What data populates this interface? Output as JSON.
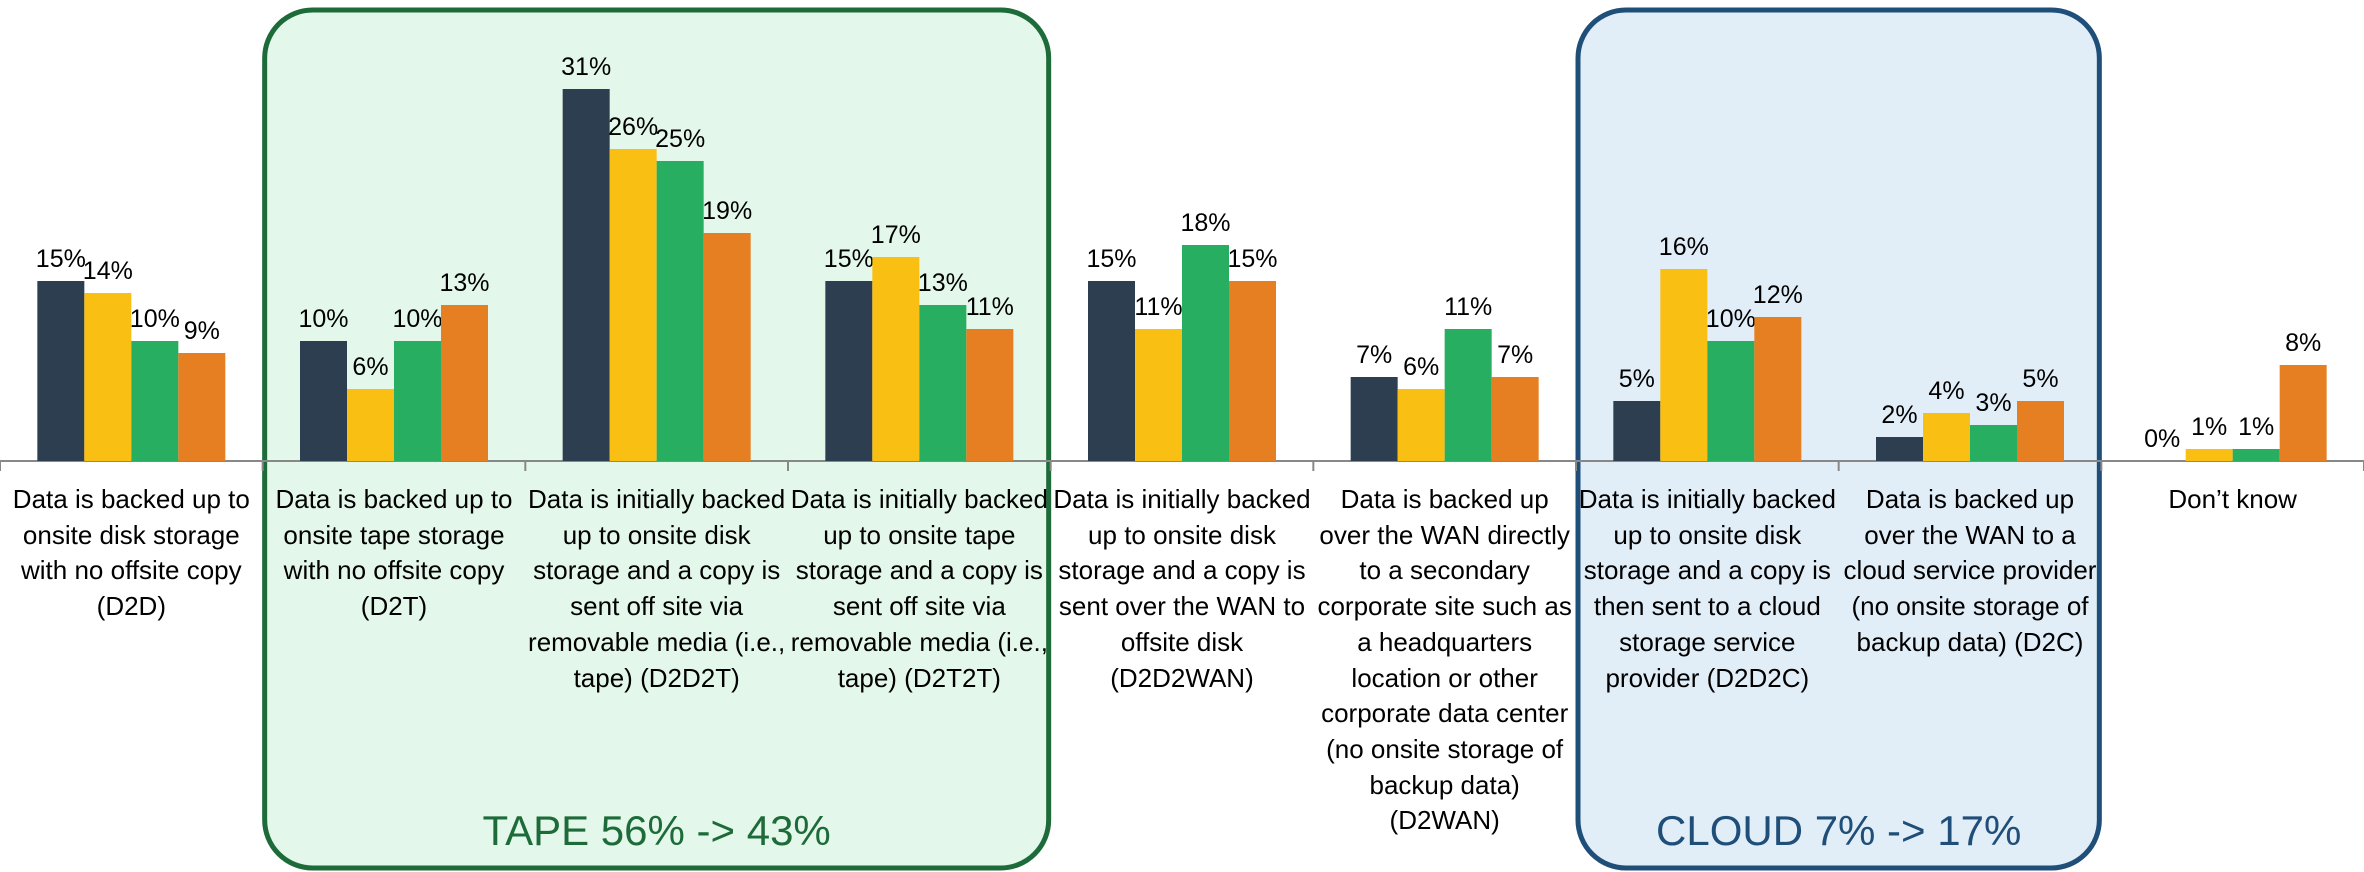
{
  "chart_data": {
    "type": "bar",
    "categories": [
      "Data is backed up to onsite disk storage with no offsite copy (D2D)",
      "Data is backed up to onsite tape storage with no offsite copy (D2T)",
      "Data is initially backed up to onsite disk storage and a copy is sent off site via removable media (i.e., tape) (D2D2T)",
      "Data is initially backed up to onsite tape storage and a copy is sent off site via removable media (i.e., tape) (D2T2T)",
      "Data is initially backed up to onsite disk storage and a copy is sent over the WAN to offsite disk (D2D2WAN)",
      "Data is backed up over the WAN directly to a secondary corporate site such as a headquarters location or other corporate data center (no onsite storage of backup data) (D2WAN)",
      "Data is initially backed up to onsite disk storage and a copy is then sent to a cloud storage service provider (D2D2C)",
      "Data is backed up over the WAN to a cloud service provider (no onsite storage of backup data) (D2C)",
      "Don’t know"
    ],
    "series": [
      {
        "color": "#2c3e50",
        "values": [
          15,
          10,
          31,
          15,
          15,
          7,
          5,
          2,
          0
        ],
        "value_labels": [
          "15%",
          "10%",
          "31%",
          "15%",
          "15%",
          "7%",
          "5%",
          "2%",
          "0%"
        ]
      },
      {
        "color": "#f9bf13",
        "values": [
          14,
          6,
          26,
          17,
          11,
          6,
          16,
          4,
          1
        ],
        "value_labels": [
          "14%",
          "6%",
          "26%",
          "17%",
          "11%",
          "6%",
          "16%",
          "4%",
          "1%"
        ]
      },
      {
        "color": "#27ae60",
        "values": [
          10,
          10,
          25,
          13,
          18,
          11,
          10,
          3,
          1
        ],
        "value_labels": [
          "10%",
          "10%",
          "25%",
          "13%",
          "18%",
          "11%",
          "10%",
          "3%",
          "1%"
        ]
      },
      {
        "color": "#e67e22",
        "values": [
          9,
          13,
          19,
          11,
          15,
          7,
          12,
          5,
          8
        ],
        "value_labels": [
          "9%",
          "13%",
          "19%",
          "11%",
          "15%",
          "7%",
          "12%",
          "5%",
          "8%"
        ]
      }
    ],
    "ylim": [
      0,
      35
    ],
    "annotations": [
      "TAPE 56% -> 43%",
      "CLOUD 7% -> 17%"
    ]
  }
}
